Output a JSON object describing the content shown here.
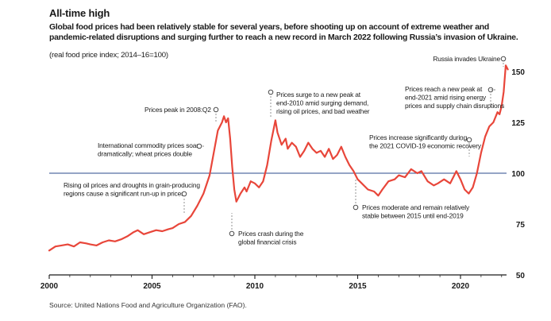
{
  "chart_data": {
    "type": "line",
    "title": "All-time high",
    "subtitle": "Global food prices had been relatively stable for several years, before shooting up on account of extreme weather and pandemic-related disruptions and surging further to reach a new record in March 2022 following Russia’s invasion of Ukraine.",
    "unit_note": "(real food price index; 2014–16=100)",
    "source": "Source: United Nations Food and Agriculture Organization (FAO).",
    "xlim": [
      2000,
      2022.8
    ],
    "ylim": [
      50,
      157
    ],
    "x_ticks": [
      2000,
      2005,
      2010,
      2015,
      2020
    ],
    "y_ticks": [
      50,
      75,
      100,
      125,
      150
    ],
    "reference_line": 100,
    "colors": {
      "line": "#e8463a",
      "reference": "#2b4a8b",
      "axis": "#1a1a1a",
      "leader": "#888888"
    },
    "series": [
      {
        "values": [
          [
            2000.0,
            62
          ],
          [
            2000.3,
            64
          ],
          [
            2000.6,
            64.5
          ],
          [
            2000.9,
            65
          ],
          [
            2001.2,
            64
          ],
          [
            2001.5,
            66
          ],
          [
            2001.8,
            65.5
          ],
          [
            2002.0,
            65
          ],
          [
            2002.3,
            64.5
          ],
          [
            2002.6,
            66
          ],
          [
            2002.9,
            67
          ],
          [
            2003.2,
            66.5
          ],
          [
            2003.5,
            67.5
          ],
          [
            2003.8,
            69
          ],
          [
            2004.1,
            71
          ],
          [
            2004.3,
            72
          ],
          [
            2004.6,
            70
          ],
          [
            2004.9,
            71
          ],
          [
            2005.2,
            72
          ],
          [
            2005.5,
            71.5
          ],
          [
            2005.8,
            72.5
          ],
          [
            2006.0,
            73
          ],
          [
            2006.3,
            75
          ],
          [
            2006.6,
            76
          ],
          [
            2006.9,
            79
          ],
          [
            2007.2,
            84
          ],
          [
            2007.5,
            90
          ],
          [
            2007.8,
            99
          ],
          [
            2008.0,
            110
          ],
          [
            2008.2,
            121
          ],
          [
            2008.4,
            125
          ],
          [
            2008.5,
            128
          ],
          [
            2008.6,
            125
          ],
          [
            2008.7,
            127
          ],
          [
            2008.8,
            117
          ],
          [
            2008.9,
            103
          ],
          [
            2009.0,
            92
          ],
          [
            2009.1,
            86
          ],
          [
            2009.3,
            90
          ],
          [
            2009.5,
            93
          ],
          [
            2009.6,
            91
          ],
          [
            2009.8,
            96
          ],
          [
            2010.0,
            95
          ],
          [
            2010.2,
            93
          ],
          [
            2010.4,
            96
          ],
          [
            2010.6,
            104
          ],
          [
            2010.8,
            116
          ],
          [
            2011.0,
            126
          ],
          [
            2011.1,
            120
          ],
          [
            2011.3,
            114
          ],
          [
            2011.5,
            117
          ],
          [
            2011.6,
            112
          ],
          [
            2011.8,
            115
          ],
          [
            2012.0,
            113
          ],
          [
            2012.2,
            108
          ],
          [
            2012.4,
            111
          ],
          [
            2012.6,
            115
          ],
          [
            2012.8,
            112
          ],
          [
            2013.0,
            110
          ],
          [
            2013.2,
            111
          ],
          [
            2013.4,
            108
          ],
          [
            2013.6,
            112
          ],
          [
            2013.8,
            107
          ],
          [
            2014.0,
            109
          ],
          [
            2014.2,
            113
          ],
          [
            2014.4,
            108
          ],
          [
            2014.6,
            104
          ],
          [
            2014.8,
            101
          ],
          [
            2015.0,
            97
          ],
          [
            2015.2,
            95
          ],
          [
            2015.5,
            92
          ],
          [
            2015.8,
            91
          ],
          [
            2016.0,
            89
          ],
          [
            2016.2,
            92
          ],
          [
            2016.5,
            96
          ],
          [
            2016.8,
            97
          ],
          [
            2017.0,
            99
          ],
          [
            2017.3,
            98
          ],
          [
            2017.6,
            102
          ],
          [
            2017.9,
            100
          ],
          [
            2018.1,
            101
          ],
          [
            2018.4,
            96
          ],
          [
            2018.7,
            94
          ],
          [
            2018.9,
            95
          ],
          [
            2019.2,
            97
          ],
          [
            2019.5,
            95
          ],
          [
            2019.8,
            101
          ],
          [
            2020.0,
            97
          ],
          [
            2020.2,
            92
          ],
          [
            2020.4,
            90
          ],
          [
            2020.6,
            93
          ],
          [
            2020.8,
            100
          ],
          [
            2021.0,
            110
          ],
          [
            2021.2,
            118
          ],
          [
            2021.4,
            123
          ],
          [
            2021.6,
            125
          ],
          [
            2021.8,
            130
          ],
          [
            2021.9,
            129
          ],
          [
            2022.0,
            133
          ],
          [
            2022.1,
            140
          ],
          [
            2022.2,
            153
          ],
          [
            2022.3,
            151
          ]
        ]
      }
    ],
    "annotations": [
      {
        "text": [
          "Rising oil prices and droughts in grain-producing",
          "regions cause a significant run-up in prices"
        ]
      },
      {
        "text": [
          "International commodity prices soar",
          "dramatically; wheat prices double"
        ]
      },
      {
        "text": [
          "Prices peak in 2008:Q2"
        ]
      },
      {
        "text": [
          "Prices crash during the",
          "global financial crisis"
        ]
      },
      {
        "text": [
          "Prices surge to a new peak at",
          "end-2010 amid surging demand,",
          "rising oil prices, and bad weather"
        ]
      },
      {
        "text": [
          "Prices moderate and remain relatively",
          "stable between 2015 until end-2019"
        ]
      },
      {
        "text": [
          "Prices increase significantly during",
          "the 2021 COVID-19 economic recovery"
        ]
      },
      {
        "text": [
          "Prices reach a new peak at",
          "end-2021 amid rising energy",
          "prices and supply chain disruptions"
        ]
      },
      {
        "text": [
          "Russia invades Ukraine"
        ]
      }
    ]
  }
}
